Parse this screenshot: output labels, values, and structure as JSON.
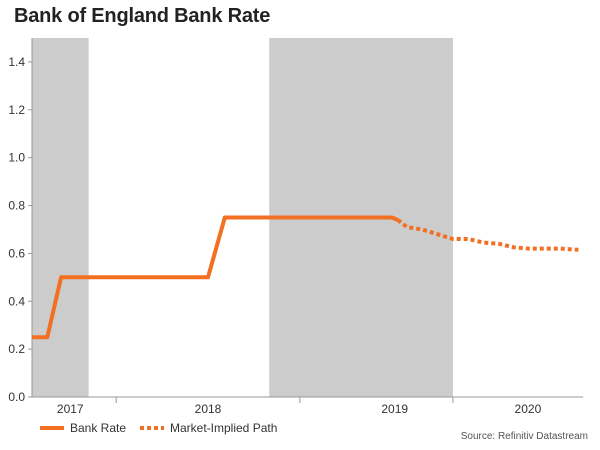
{
  "chart_data": {
    "type": "line",
    "title": "Bank of England Bank Rate",
    "ylim": [
      0,
      1.5
    ],
    "yticks": [
      0.0,
      0.2,
      0.4,
      0.6,
      0.8,
      1.0,
      1.2,
      1.4
    ],
    "ytick_labels": [
      "0.0",
      "0.2",
      "0.4",
      "0.6",
      "0.8",
      "1.0",
      "1.2",
      "1.4"
    ],
    "xlim": [
      2016.85,
      2020.45
    ],
    "year_labels": [
      {
        "label": "2017",
        "x": 2017.1
      },
      {
        "label": "2018",
        "x": 2018.0
      },
      {
        "label": "2019",
        "x": 2019.22
      },
      {
        "label": "2020",
        "x": 2020.09
      }
    ],
    "year_boundaries": [
      2017.4,
      2018.6,
      2019.6
    ],
    "shaded_regions": [
      [
        2016.85,
        2017.22
      ],
      [
        2018.4,
        2019.6
      ]
    ],
    "series": [
      {
        "name": "Bank Rate",
        "style": "solid",
        "color": "#f36f21",
        "points": [
          [
            2016.85,
            0.25
          ],
          [
            2016.95,
            0.25
          ],
          [
            2017.04,
            0.5
          ],
          [
            2018.0,
            0.5
          ],
          [
            2018.11,
            0.75
          ],
          [
            2019.2,
            0.75
          ],
          [
            2019.24,
            0.74
          ]
        ]
      },
      {
        "name": "Market-Implied Path",
        "style": "dotted",
        "color": "#f36f21",
        "points": [
          [
            2019.24,
            0.74
          ],
          [
            2019.3,
            0.71
          ],
          [
            2019.4,
            0.7
          ],
          [
            2019.5,
            0.68
          ],
          [
            2019.6,
            0.66
          ],
          [
            2019.7,
            0.66
          ],
          [
            2019.8,
            0.645
          ],
          [
            2019.9,
            0.64
          ],
          [
            2020.0,
            0.625
          ],
          [
            2020.1,
            0.62
          ],
          [
            2020.2,
            0.62
          ],
          [
            2020.3,
            0.62
          ],
          [
            2020.42,
            0.615
          ]
        ]
      }
    ],
    "source": "Source: Refinitiv Datastream"
  },
  "colors": {
    "shade": "#cccccc",
    "axis": "#999999",
    "line": "#f36f21"
  }
}
